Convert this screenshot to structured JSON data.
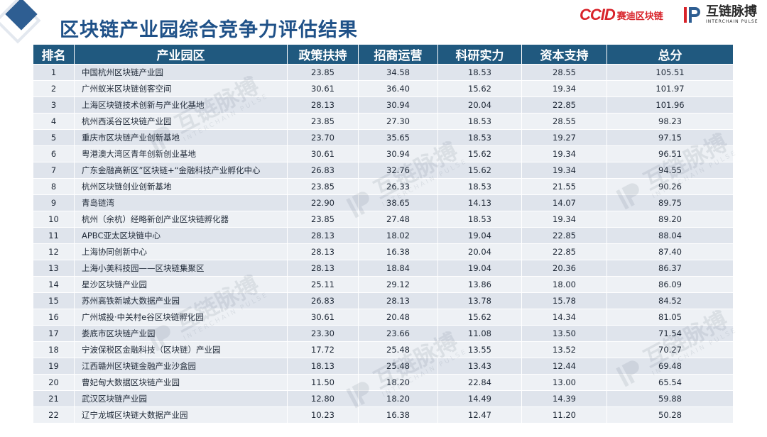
{
  "title": "区块链产业园综合竞争力评估结果",
  "logos": {
    "ccid_mark": "CCID",
    "ccid_cn": "赛迪区块链",
    "interchain_cn": "互链脉搏",
    "interchain_en": "INTERCHAIN PULSE"
  },
  "table": {
    "headers": [
      "排名",
      "产业园区",
      "政策扶持",
      "招商运营",
      "科研实力",
      "资本支持",
      "总分"
    ],
    "rows": [
      [
        "1",
        "中国杭州区块链产业园",
        "23.85",
        "34.58",
        "18.53",
        "28.55",
        "105.51"
      ],
      [
        "2",
        "广州蚁米区块链创客空间",
        "30.61",
        "36.40",
        "15.62",
        "19.34",
        "101.97"
      ],
      [
        "3",
        "上海区块链技术创新与产业化基地",
        "28.13",
        "30.94",
        "20.04",
        "22.85",
        "101.96"
      ],
      [
        "4",
        "杭州西溪谷区块链产业园",
        "23.85",
        "27.30",
        "18.53",
        "28.55",
        "98.23"
      ],
      [
        "5",
        "重庆市区块链产业创新基地",
        "23.70",
        "35.65",
        "18.53",
        "19.27",
        "97.15"
      ],
      [
        "6",
        "粤港澳大湾区青年创新创业基地",
        "30.61",
        "30.94",
        "15.62",
        "19.34",
        "96.51"
      ],
      [
        "7",
        "广东金融高新区”区块链+“金融科技产业孵化中心",
        "26.83",
        "32.76",
        "15.62",
        "19.34",
        "94.55"
      ],
      [
        "8",
        "杭州区块链创业创新基地",
        "23.85",
        "26.33",
        "18.53",
        "21.55",
        "90.26"
      ],
      [
        "9",
        "青岛链湾",
        "22.90",
        "38.65",
        "14.13",
        "14.07",
        "89.75"
      ],
      [
        "10",
        "杭州（余杭）经略新创产业区块链孵化器",
        "23.85",
        "27.48",
        "18.53",
        "19.34",
        "89.20"
      ],
      [
        "11",
        "APBC亚太区块链中心",
        "28.13",
        "18.02",
        "19.04",
        "22.85",
        "88.04"
      ],
      [
        "12",
        "上海协同创新中心",
        "28.13",
        "16.38",
        "20.04",
        "22.85",
        "87.40"
      ],
      [
        "13",
        "上海小美科技园——区块链集聚区",
        "28.13",
        "18.84",
        "19.04",
        "20.36",
        "86.37"
      ],
      [
        "14",
        "星沙区块链产业园",
        "25.11",
        "29.12",
        "13.86",
        "18.00",
        "86.09"
      ],
      [
        "15",
        "苏州高铁新城大数据产业园",
        "26.83",
        "28.13",
        "13.78",
        "15.78",
        "84.52"
      ],
      [
        "16",
        "广州城投·中关村e谷区块链孵化园",
        "30.61",
        "20.48",
        "15.62",
        "14.34",
        "81.05"
      ],
      [
        "17",
        "娄底市区块链产业园",
        "23.30",
        "23.66",
        "11.08",
        "13.50",
        "71.54"
      ],
      [
        "18",
        "宁波保税区金融科技（区块链）产业园",
        "17.72",
        "25.48",
        "13.55",
        "13.52",
        "70.27"
      ],
      [
        "19",
        "江西赣州区块链金融产业沙盒园",
        "18.13",
        "25.48",
        "13.43",
        "12.44",
        "69.48"
      ],
      [
        "20",
        "曹妃甸大数据区块链产业园",
        "11.50",
        "18.20",
        "22.84",
        "13.00",
        "65.54"
      ],
      [
        "21",
        "武汉区块链产业园",
        "12.80",
        "18.20",
        "14.49",
        "14.39",
        "59.88"
      ],
      [
        "22",
        "辽宁龙城区块链大数据产业园",
        "10.23",
        "16.38",
        "12.47",
        "11.20",
        "50.28"
      ]
    ]
  }
}
